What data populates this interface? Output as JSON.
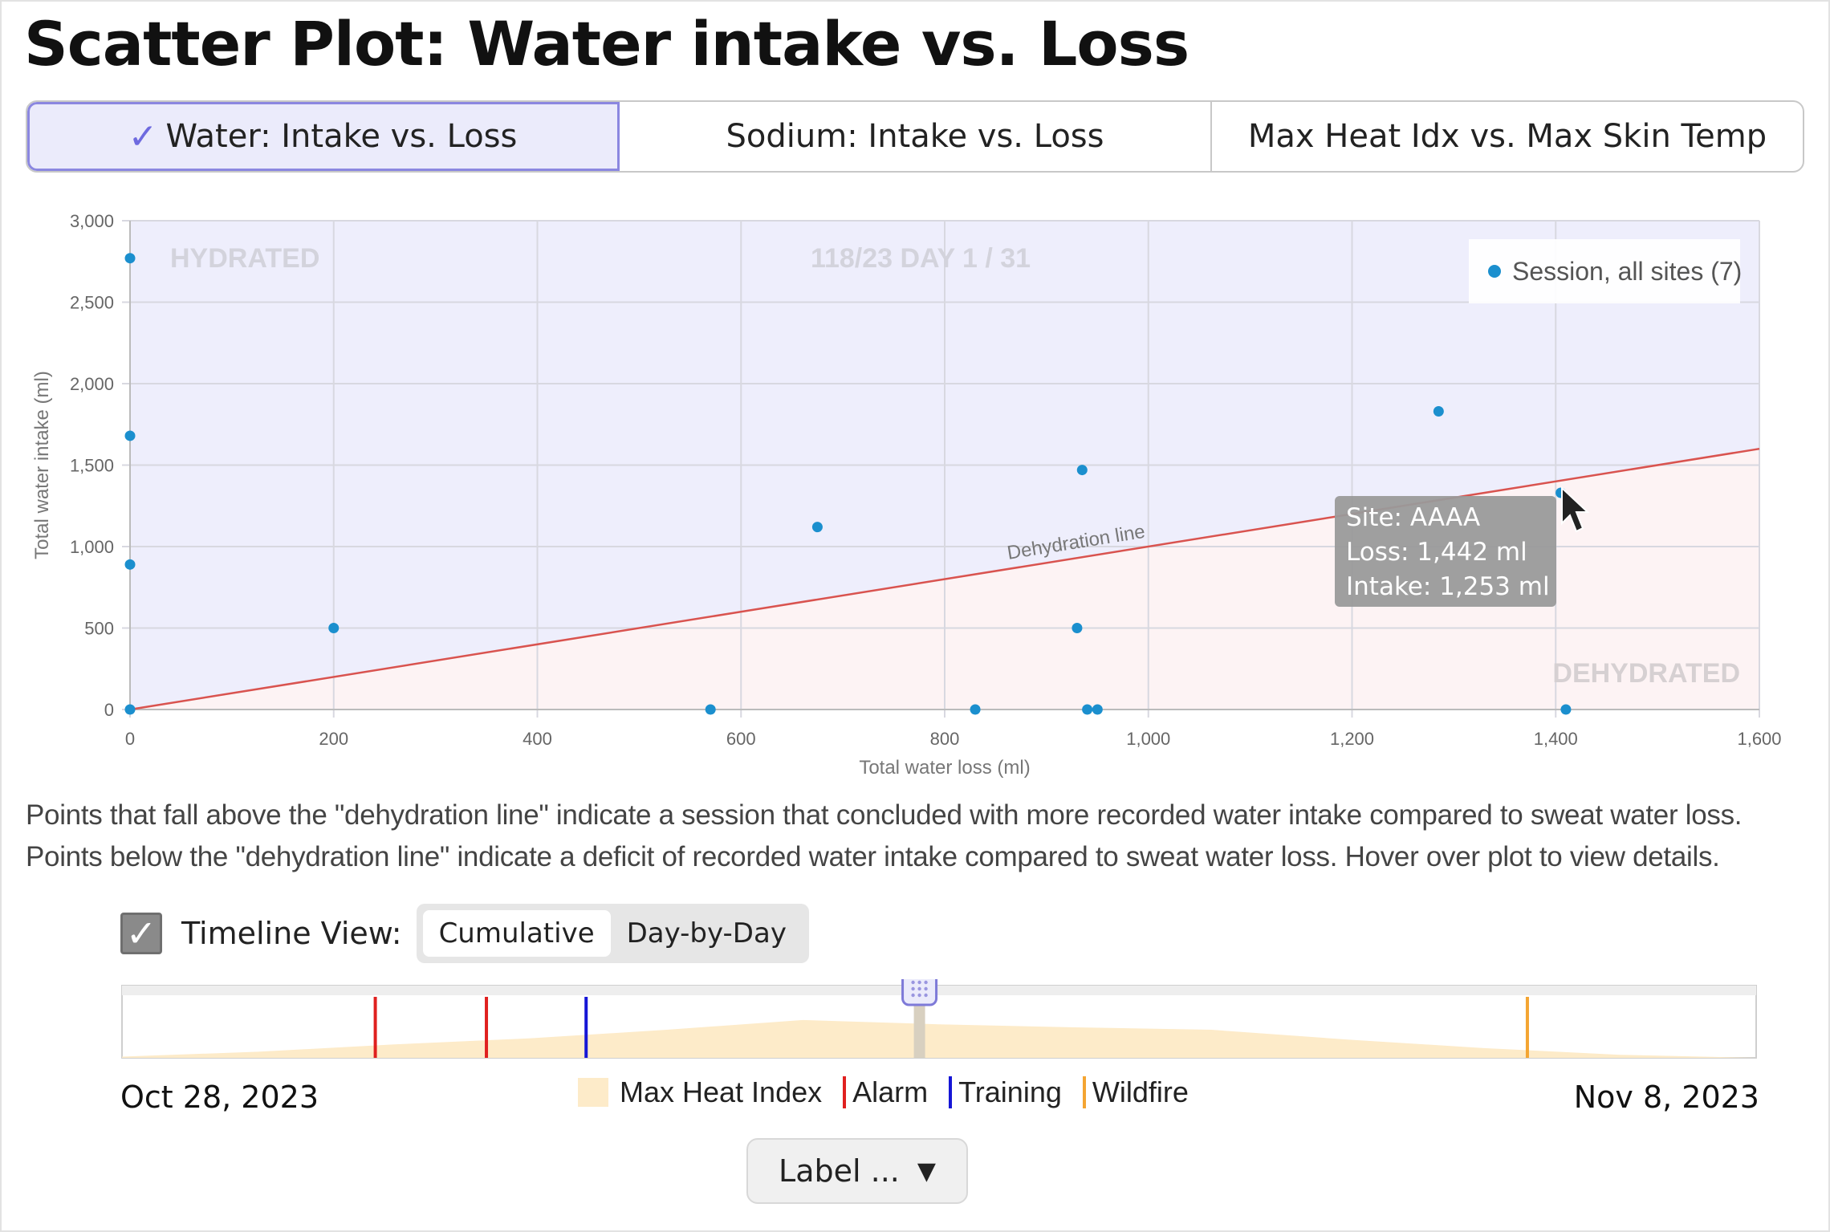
{
  "title": "Scatter Plot: Water intake vs. Loss",
  "tabs": [
    {
      "label": "Water: Intake vs. Loss",
      "active": true
    },
    {
      "label": "Sodium: Intake vs. Loss",
      "active": false
    },
    {
      "label": "Max Heat Idx vs. Max Skin Temp",
      "active": false
    }
  ],
  "chart_data": {
    "type": "scatter",
    "xlabel": "Total water loss (ml)",
    "ylabel": "Total water intake (ml)",
    "xlim": [
      0,
      1600
    ],
    "ylim": [
      0,
      3000
    ],
    "x_ticks": [
      "0",
      "200",
      "400",
      "600",
      "800",
      "1,000",
      "1,200",
      "1,400",
      "1,600"
    ],
    "y_ticks": [
      "0",
      "500",
      "1,000",
      "1,500",
      "2,000",
      "2,500",
      "3,000"
    ],
    "grid": true,
    "legend_position": "top-right",
    "series": [
      {
        "name": "Session, all sites (7)",
        "color": "#1b8fce",
        "points": [
          {
            "x": 0,
            "y": 2770
          },
          {
            "x": 0,
            "y": 1680
          },
          {
            "x": 0,
            "y": 890
          },
          {
            "x": 0,
            "y": 0
          },
          {
            "x": 200,
            "y": 500
          },
          {
            "x": 570,
            "y": 0
          },
          {
            "x": 675,
            "y": 1120
          },
          {
            "x": 830,
            "y": 0
          },
          {
            "x": 930,
            "y": 500
          },
          {
            "x": 935,
            "y": 1470
          },
          {
            "x": 940,
            "y": 0
          },
          {
            "x": 950,
            "y": 0
          },
          {
            "x": 1285,
            "y": 1830
          },
          {
            "x": 1405,
            "y": 1330
          },
          {
            "x": 1410,
            "y": 0
          }
        ]
      }
    ],
    "reference_line": {
      "label": "Dehydration line",
      "slope": 1,
      "color": "#d9534f"
    },
    "region_labels": {
      "top_left": "HYDRATED",
      "top_center": "118/23 DAY 1 / 31",
      "bottom_right": "DEHYDRATED"
    },
    "tooltip": {
      "lines": [
        "Site: AAAA",
        "Loss: 1,442 ml",
        "Intake: 1,253 ml"
      ]
    },
    "region_colors": {
      "hydrated": "#eeeefc",
      "dehydrated": "#fdf3f4"
    }
  },
  "caption": "Points that fall above the \"dehydration line\" indicate a session that concluded with more recorded water intake compared to sweat water loss. Points below the \"dehydration line\" indicate a deficit of recorded water intake compared to sweat water loss. Hover over plot to view details.",
  "timeline": {
    "checkbox_checked": true,
    "label": "Timeline View:",
    "modes": [
      {
        "label": "Cumulative",
        "selected": true
      },
      {
        "label": "Day-by-Day",
        "selected": false
      }
    ],
    "start_date": "Oct 28, 2023",
    "end_date": "Nov 8, 2023",
    "slider_position_fraction": 0.488,
    "heat_index_profile": [
      0.02,
      0.1,
      0.22,
      0.32,
      0.46,
      0.62,
      0.55,
      0.5,
      0.46,
      0.3,
      0.16,
      0.05,
      0.0
    ],
    "events": [
      {
        "type": "Alarm",
        "fraction": 0.155,
        "color": "#e0201f"
      },
      {
        "type": "Alarm",
        "fraction": 0.223,
        "color": "#e0201f"
      },
      {
        "type": "Training",
        "fraction": 0.284,
        "color": "#1616d6"
      },
      {
        "type": "Wildfire",
        "fraction": 0.86,
        "color": "#f4a532"
      }
    ],
    "legend": [
      {
        "label": "Max Heat Index",
        "kind": "swatch",
        "color": "#fdebc9"
      },
      {
        "label": "Alarm",
        "kind": "bar",
        "color": "#e0201f"
      },
      {
        "label": "Training",
        "kind": "bar",
        "color": "#1616d6"
      },
      {
        "label": "Wildfire",
        "kind": "bar",
        "color": "#f4a532"
      }
    ]
  },
  "dropdown": {
    "label": "Label ..."
  }
}
